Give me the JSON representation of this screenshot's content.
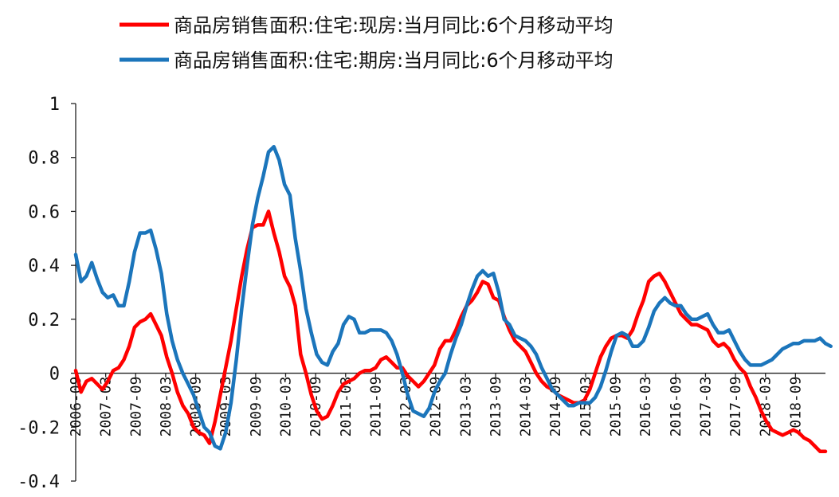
{
  "chart_data": {
    "type": "line",
    "title": "",
    "xlabel": "",
    "ylabel": "",
    "ylim": [
      -0.4,
      1
    ],
    "yticks": [
      "1",
      "0.8",
      "0.6",
      "0.4",
      "0.2",
      "0",
      "-0.2",
      "-0.4"
    ],
    "xticks": [
      "2006-09",
      "2007-03",
      "2007-09",
      "2008-03",
      "2008-09",
      "2009-03",
      "2009-09",
      "2010-03",
      "2010-09",
      "2011-03",
      "2011-09",
      "2012-03",
      "2012-09",
      "2013-03",
      "2013-09",
      "2014-03",
      "2014-09",
      "2015-03",
      "2015-09",
      "2016-03",
      "2016-09",
      "2017-03",
      "2017-09",
      "2018-03",
      "2018-09"
    ],
    "legend_position": "top",
    "grid": false,
    "series": [
      {
        "name": "商品房销售面积:住宅:现房:当月同比:6个月移动平均",
        "color": "#ff0000",
        "values": [
          0.01,
          -0.07,
          -0.03,
          -0.02,
          -0.04,
          -0.06,
          -0.03,
          0.01,
          0.02,
          0.05,
          0.1,
          0.17,
          0.19,
          0.2,
          0.22,
          0.18,
          0.14,
          0.06,
          0.0,
          -0.07,
          -0.12,
          -0.15,
          -0.2,
          -0.22,
          -0.23,
          -0.26,
          -0.18,
          -0.08,
          0.02,
          0.12,
          0.24,
          0.36,
          0.46,
          0.54,
          0.55,
          0.55,
          0.6,
          0.52,
          0.45,
          0.36,
          0.32,
          0.25,
          0.07,
          0.0,
          -0.08,
          -0.14,
          -0.17,
          -0.16,
          -0.12,
          -0.07,
          -0.04,
          -0.03,
          -0.02,
          0.0,
          0.01,
          0.01,
          0.02,
          0.05,
          0.06,
          0.04,
          0.02,
          0.02,
          -0.01,
          -0.03,
          -0.05,
          -0.03,
          0.0,
          0.03,
          0.09,
          0.12,
          0.12,
          0.16,
          0.21,
          0.25,
          0.27,
          0.3,
          0.34,
          0.33,
          0.28,
          0.27,
          0.21,
          0.16,
          0.12,
          0.1,
          0.08,
          0.04,
          0.0,
          -0.03,
          -0.05,
          -0.06,
          -0.08,
          -0.09,
          -0.1,
          -0.11,
          -0.11,
          -0.1,
          -0.06,
          0.0,
          0.06,
          0.1,
          0.13,
          0.14,
          0.14,
          0.13,
          0.16,
          0.22,
          0.27,
          0.34,
          0.36,
          0.37,
          0.34,
          0.3,
          0.26,
          0.22,
          0.2,
          0.18,
          0.18,
          0.17,
          0.16,
          0.12,
          0.1,
          0.11,
          0.09,
          0.05,
          0.02,
          0.0,
          -0.05,
          -0.09,
          -0.14,
          -0.18,
          -0.21,
          -0.22,
          -0.23,
          -0.22,
          -0.21,
          -0.22,
          -0.24,
          -0.25,
          -0.27,
          -0.29,
          -0.29
        ]
      },
      {
        "name": "商品房销售面积:住宅:期房:当月同比:6个月移动平均",
        "color": "#1b75bb",
        "values": [
          0.44,
          0.34,
          0.36,
          0.41,
          0.35,
          0.3,
          0.28,
          0.29,
          0.25,
          0.25,
          0.34,
          0.45,
          0.52,
          0.52,
          0.53,
          0.46,
          0.37,
          0.22,
          0.12,
          0.05,
          0.0,
          -0.04,
          -0.08,
          -0.14,
          -0.2,
          -0.22,
          -0.27,
          -0.28,
          -0.22,
          -0.11,
          0.05,
          0.24,
          0.4,
          0.55,
          0.65,
          0.73,
          0.82,
          0.84,
          0.79,
          0.7,
          0.66,
          0.5,
          0.38,
          0.24,
          0.15,
          0.07,
          0.04,
          0.03,
          0.08,
          0.11,
          0.18,
          0.21,
          0.2,
          0.15,
          0.15,
          0.16,
          0.16,
          0.16,
          0.15,
          0.12,
          0.07,
          0.0,
          -0.08,
          -0.14,
          -0.15,
          -0.16,
          -0.13,
          -0.07,
          -0.03,
          0.0,
          0.07,
          0.13,
          0.18,
          0.25,
          0.31,
          0.36,
          0.38,
          0.36,
          0.37,
          0.3,
          0.2,
          0.18,
          0.14,
          0.13,
          0.12,
          0.1,
          0.07,
          0.02,
          -0.02,
          -0.06,
          -0.08,
          -0.1,
          -0.12,
          -0.12,
          -0.11,
          -0.11,
          -0.11,
          -0.09,
          -0.05,
          0.01,
          0.08,
          0.14,
          0.15,
          0.14,
          0.1,
          0.1,
          0.12,
          0.17,
          0.23,
          0.26,
          0.28,
          0.26,
          0.25,
          0.25,
          0.22,
          0.2,
          0.2,
          0.21,
          0.22,
          0.18,
          0.15,
          0.15,
          0.16,
          0.12,
          0.08,
          0.05,
          0.03,
          0.03,
          0.03,
          0.04,
          0.05,
          0.07,
          0.09,
          0.1,
          0.11,
          0.11,
          0.12,
          0.12,
          0.12,
          0.13,
          0.11,
          0.1
        ]
      }
    ]
  }
}
